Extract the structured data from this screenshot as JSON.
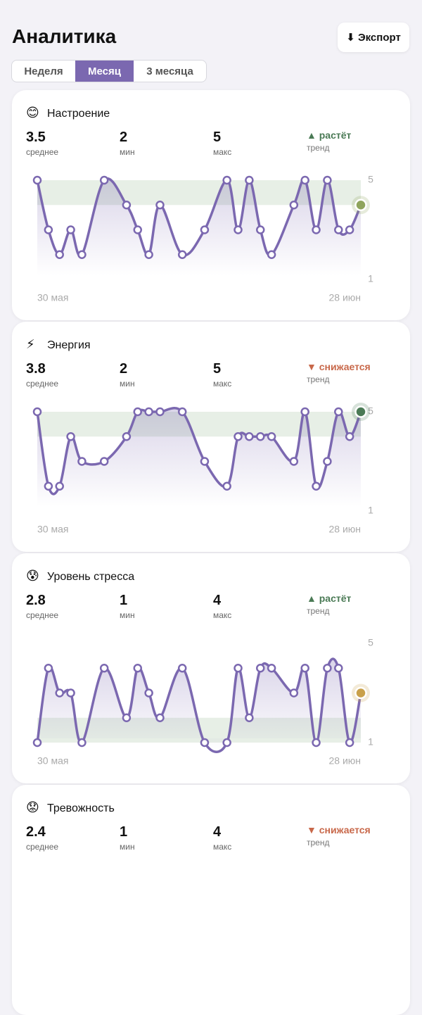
{
  "header": {
    "title": "Аналитика",
    "export_button": "⬇ Экспорт"
  },
  "tabs": {
    "items": [
      "Неделя",
      "Месяц",
      "3 месяца"
    ],
    "active": 1,
    "active_color": "#7b68b0"
  },
  "cards": [
    {
      "icon": "😊",
      "title": "Настроение",
      "stats": [
        {
          "value": 3.5,
          "label": "среднее"
        },
        {
          "value": 2,
          "label": "мин"
        },
        {
          "value": 5,
          "label": "макс"
        }
      ],
      "trend": {
        "text": "▲ растёт",
        "label": "тренд",
        "color": "#4a7a55"
      },
      "chart_data": {
        "type": "line",
        "color": "#7b68b0",
        "highlight_color": "#8fa45c",
        "x": [
          0,
          1,
          2,
          3,
          4,
          6,
          8,
          9,
          10,
          11,
          13,
          15,
          17,
          18,
          19,
          20,
          21,
          23,
          24,
          25,
          26,
          27,
          28,
          29
        ],
        "values": [
          5,
          3,
          2,
          3,
          2,
          5,
          4,
          3,
          2,
          4,
          2,
          3,
          5,
          3,
          5,
          3,
          2,
          4,
          5,
          3,
          5,
          3,
          3,
          4
        ],
        "xlim": [
          0,
          29
        ],
        "xticks": [
          {
            "value": 0,
            "label": "30 мая"
          },
          {
            "value": 29,
            "label": "28 июн"
          }
        ],
        "ylim": [
          1,
          5
        ],
        "yticks": [
          5,
          1
        ],
        "band": [
          4,
          5
        ],
        "band_color": "#e7efe6"
      }
    },
    {
      "icon": "⚡",
      "title": "Энергия",
      "stats": [
        {
          "value": 3.8,
          "label": "среднее"
        },
        {
          "value": 2,
          "label": "мин"
        },
        {
          "value": 5,
          "label": "макс"
        }
      ],
      "trend": {
        "text": "▼ снижается",
        "label": "тренд",
        "color": "#c8684a"
      },
      "chart_data": {
        "type": "line",
        "color": "#7b68b0",
        "highlight_color": "#4a7a55",
        "x": [
          0,
          1,
          2,
          3,
          4,
          6,
          8,
          9,
          10,
          11,
          13,
          15,
          17,
          18,
          19,
          20,
          21,
          23,
          24,
          25,
          26,
          27,
          28,
          29
        ],
        "values": [
          5,
          2,
          2,
          4,
          3,
          3,
          4,
          5,
          5,
          5,
          5,
          3,
          2,
          4,
          4,
          4,
          4,
          3,
          5,
          2,
          3,
          5,
          4,
          5
        ],
        "xlim": [
          0,
          29
        ],
        "xticks": [
          {
            "value": 0,
            "label": "30 мая"
          },
          {
            "value": 29,
            "label": "28 июн"
          }
        ],
        "ylim": [
          1,
          5
        ],
        "yticks": [
          5,
          1
        ],
        "band": [
          4,
          5
        ],
        "band_color": "#e7efe6"
      }
    },
    {
      "icon": "😰",
      "title": "Уровень стресса",
      "stats": [
        {
          "value": 2.8,
          "label": "среднее"
        },
        {
          "value": 1,
          "label": "мин"
        },
        {
          "value": 4,
          "label": "макс"
        }
      ],
      "trend": {
        "text": "▲ растёт",
        "label": "тренд",
        "color": "#4a7a55"
      },
      "chart_data": {
        "type": "line",
        "color": "#7b68b0",
        "highlight_color": "#c9a04a",
        "x": [
          0,
          1,
          2,
          3,
          4,
          6,
          8,
          9,
          10,
          11,
          13,
          15,
          17,
          18,
          19,
          20,
          21,
          23,
          24,
          25,
          26,
          27,
          28,
          29
        ],
        "values": [
          1,
          4,
          3,
          3,
          1,
          4,
          2,
          4,
          3,
          2,
          4,
          1,
          1,
          4,
          2,
          4,
          4,
          3,
          4,
          1,
          4,
          4,
          1,
          3
        ],
        "xlim": [
          0,
          29
        ],
        "xticks": [
          {
            "value": 0,
            "label": "30 мая"
          },
          {
            "value": 29,
            "label": "28 июн"
          }
        ],
        "ylim": [
          1,
          5
        ],
        "yticks": [
          5,
          1
        ],
        "band": [
          1,
          2
        ],
        "band_color": "#e7efe6"
      }
    },
    {
      "icon": "😟",
      "title": "Тревожность",
      "stats": [
        {
          "value": 2.4,
          "label": "среднее"
        },
        {
          "value": 1,
          "label": "мин"
        },
        {
          "value": 4,
          "label": "макс"
        }
      ],
      "trend": {
        "text": "▼ снижается",
        "label": "тренд",
        "color": "#c8684a"
      }
    }
  ]
}
